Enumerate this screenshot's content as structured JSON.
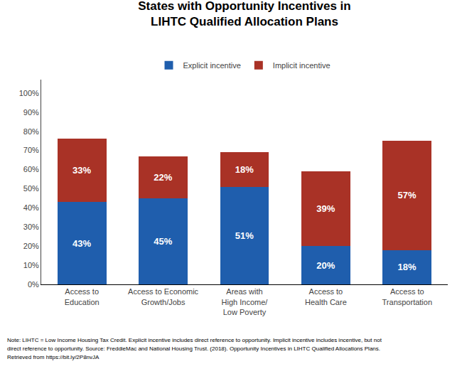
{
  "chart_data": {
    "type": "bar",
    "stacked": true,
    "title": "States with Opportunity Incentives in\nLIHTC Qualified Allocation Plans",
    "categories": [
      "Access to\nEducation",
      "Access to Economic\nGrowth/Jobs",
      "Areas with\nHigh Income/\nLow Poverty",
      "Access to\nHealth Care",
      "Access to\nTransportation"
    ],
    "series": [
      {
        "name": "Explicit incentive",
        "color": "#1F5EAD",
        "values": [
          43,
          45,
          51,
          20,
          18
        ],
        "value_labels": [
          "43%",
          "45%",
          "51%",
          "20%",
          "18%"
        ]
      },
      {
        "name": "Implicit incentive",
        "color": "#A93226",
        "values": [
          33,
          22,
          18,
          39,
          57
        ],
        "value_labels": [
          "33%",
          "22%",
          "18%",
          "39%",
          "57%"
        ]
      }
    ],
    "data_labels": true,
    "ylim": [
      0,
      107
    ],
    "yticks": [
      {
        "value": 0,
        "label": "0%"
      },
      {
        "value": 10,
        "label": "10%"
      },
      {
        "value": 20,
        "label": "20%"
      },
      {
        "value": 30,
        "label": "30%"
      },
      {
        "value": 40,
        "label": "40%"
      },
      {
        "value": 50,
        "label": "50%"
      },
      {
        "value": 60,
        "label": "60%"
      },
      {
        "value": 70,
        "label": "70%"
      },
      {
        "value": 80,
        "label": "80%"
      },
      {
        "value": 90,
        "label": "90%"
      },
      {
        "value": 100,
        "label": "100%"
      }
    ],
    "grid": false,
    "legend": "top",
    "annotations": [
      "Note: LIHTC = Low Income Housing Tax Credit. Explicit incentive includes direct reference to opportunity. Implicit incentive includes incentive, but not",
      "direct reference to opportunity. Source: FreddieMac and National Housing Trust. (2018). Opportunity Incentives in LIHTC Qualified Allocations Plans.",
      "Retrieved from https://bit.ly/2P8nvJA"
    ]
  }
}
